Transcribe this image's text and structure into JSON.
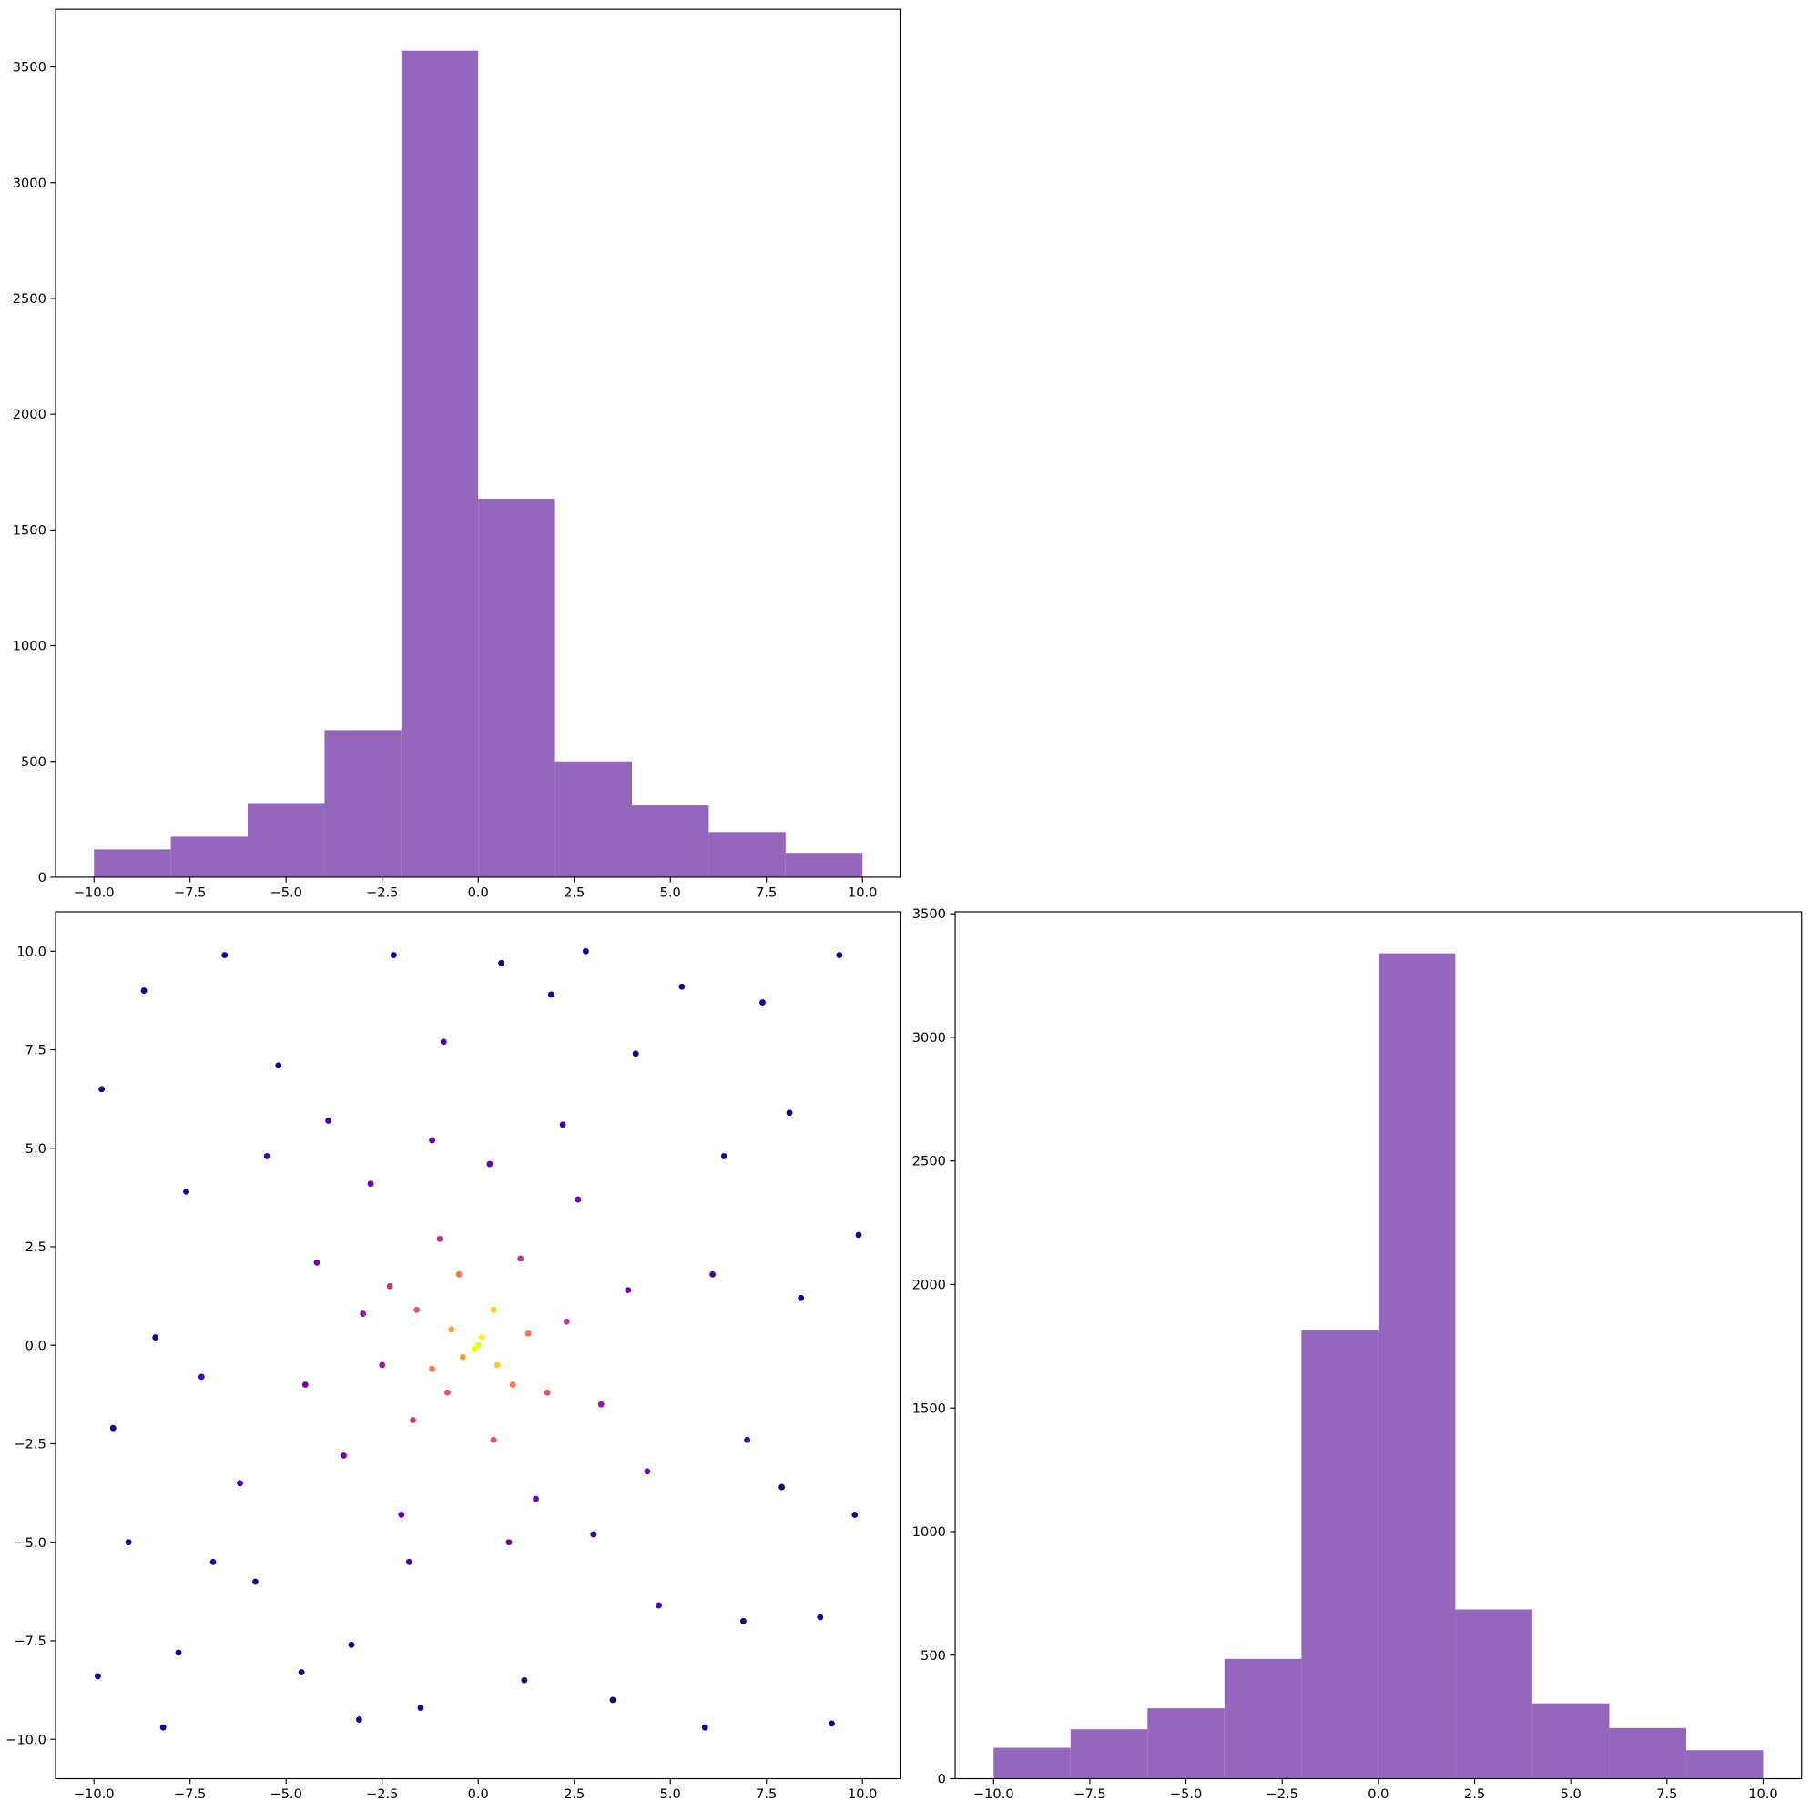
{
  "chart_data": [
    {
      "type": "histogram",
      "color": "#9467bd",
      "bins": [
        -10,
        -8,
        -6,
        -4,
        -2,
        0,
        2,
        4,
        6,
        8,
        10
      ],
      "values": [
        120,
        175,
        320,
        635,
        3570,
        1635,
        500,
        310,
        195,
        105
      ],
      "xlim": [
        -11,
        11
      ],
      "ylim": [
        0,
        3749
      ],
      "xticks": [
        {
          "value": -10,
          "label": "−10.0"
        },
        {
          "value": -7.5,
          "label": "−7.5"
        },
        {
          "value": -5,
          "label": "−5.0"
        },
        {
          "value": -2.5,
          "label": "−2.5"
        },
        {
          "value": 0,
          "label": "0.0"
        },
        {
          "value": 2.5,
          "label": "2.5"
        },
        {
          "value": 5,
          "label": "5.0"
        },
        {
          "value": 7.5,
          "label": "7.5"
        },
        {
          "value": 10,
          "label": "10.0"
        }
      ],
      "yticks": [
        0,
        500,
        1000,
        1500,
        2000,
        2500,
        3000,
        3500
      ]
    },
    {
      "type": "scatter",
      "colormap": "plasma",
      "x": [
        -9.8,
        -9.5,
        -8.7,
        -8.2,
        -7.6,
        -6.9,
        -6.6,
        -5.8,
        -5.2,
        -4.6,
        -3.9,
        -3.3,
        -2.2,
        -1.5,
        -0.9,
        0.6,
        1.2,
        1.9,
        2.8,
        3.5,
        4.1,
        4.7,
        5.3,
        5.9,
        6.4,
        6.9,
        7.4,
        7.9,
        8.4,
        8.9,
        9.4,
        9.8,
        9.9,
        -9.9,
        -9.1,
        -8.4,
        -7.2,
        -6.2,
        -5.5,
        8.1,
        9.2,
        -3.1,
        3.0,
        6.1,
        -7.8,
        7.0,
        -4.2,
        -3.5,
        -2.8,
        -2.0,
        -1.2,
        0.3,
        1.5,
        2.6,
        3.2,
        3.9,
        -4.5,
        4.4,
        2.2,
        -3.0,
        0.8,
        -1.8,
        -2.3,
        -1.7,
        -1.0,
        1.1,
        1.8,
        -2.5,
        0.4,
        2.3,
        -1.6,
        -1.2,
        -0.5,
        0.9,
        1.3,
        -0.8,
        -0.7,
        -0.4,
        0.4,
        0.5,
        0.0,
        0.1,
        -0.1
      ],
      "y": [
        6.5,
        -2.1,
        9.0,
        -9.7,
        3.9,
        -5.5,
        9.9,
        -6.0,
        7.1,
        -8.3,
        5.7,
        -7.6,
        9.9,
        -9.2,
        7.7,
        9.7,
        -8.5,
        8.9,
        10.0,
        -9.0,
        7.4,
        -6.6,
        9.1,
        -9.7,
        4.8,
        -7.0,
        8.7,
        -3.6,
        1.2,
        -6.9,
        9.9,
        -4.3,
        2.8,
        -8.4,
        -5.0,
        0.2,
        -0.8,
        -3.5,
        4.8,
        5.9,
        -9.6,
        -9.5,
        -4.8,
        1.8,
        -7.8,
        -2.4,
        2.1,
        -2.8,
        4.1,
        -4.3,
        5.2,
        4.6,
        -3.9,
        3.7,
        -1.5,
        1.4,
        -1.0,
        -3.2,
        5.6,
        0.8,
        -5.0,
        -5.5,
        1.5,
        -1.9,
        2.7,
        2.2,
        -1.2,
        -0.5,
        -2.4,
        0.6,
        0.9,
        -0.6,
        1.8,
        -1.0,
        0.3,
        -1.2,
        0.4,
        -0.3,
        0.9,
        -0.5,
        0.0,
        0.2,
        -0.1
      ],
      "c": [
        0.03,
        0.04,
        0.02,
        0.02,
        0.05,
        0.04,
        0.02,
        0.04,
        0.04,
        0.03,
        0.07,
        0.05,
        0.03,
        0.03,
        0.06,
        0.05,
        0.05,
        0.04,
        0.02,
        0.03,
        0.05,
        0.06,
        0.03,
        0.02,
        0.05,
        0.04,
        0.03,
        0.05,
        0.04,
        0.03,
        0.02,
        0.03,
        0.03,
        0.02,
        0.04,
        0.05,
        0.07,
        0.07,
        0.06,
        0.04,
        0.02,
        0.03,
        0.09,
        0.06,
        0.03,
        0.06,
        0.22,
        0.24,
        0.2,
        0.2,
        0.18,
        0.22,
        0.24,
        0.2,
        0.3,
        0.2,
        0.2,
        0.17,
        0.16,
        0.28,
        0.17,
        0.16,
        0.4,
        0.42,
        0.44,
        0.48,
        0.5,
        0.38,
        0.52,
        0.46,
        0.6,
        0.62,
        0.64,
        0.66,
        0.62,
        0.6,
        0.78,
        0.82,
        0.84,
        0.86,
        1.0,
        0.98,
        0.97
      ],
      "xlim": [
        -11,
        11
      ],
      "ylim": [
        -11,
        11
      ],
      "xticks": [
        {
          "value": -10,
          "label": "−10.0"
        },
        {
          "value": -7.5,
          "label": "−7.5"
        },
        {
          "value": -5,
          "label": "−5.0"
        },
        {
          "value": -2.5,
          "label": "−2.5"
        },
        {
          "value": 0,
          "label": "0.0"
        },
        {
          "value": 2.5,
          "label": "2.5"
        },
        {
          "value": 5,
          "label": "5.0"
        },
        {
          "value": 7.5,
          "label": "7.5"
        },
        {
          "value": 10,
          "label": "10.0"
        }
      ],
      "yticks": [
        {
          "value": -10,
          "label": "−10.0"
        },
        {
          "value": -7.5,
          "label": "−7.5"
        },
        {
          "value": -5,
          "label": "−5.0"
        },
        {
          "value": -2.5,
          "label": "−2.5"
        },
        {
          "value": 0,
          "label": "0.0"
        },
        {
          "value": 2.5,
          "label": "2.5"
        },
        {
          "value": 5,
          "label": "5.0"
        },
        {
          "value": 7.5,
          "label": "7.5"
        },
        {
          "value": 10,
          "label": "10.0"
        }
      ]
    },
    {
      "type": "histogram",
      "color": "#9467bd",
      "bins": [
        -10,
        -8,
        -6,
        -4,
        -2,
        0,
        2,
        4,
        6,
        8,
        10
      ],
      "values": [
        125,
        200,
        285,
        485,
        1815,
        3340,
        685,
        305,
        205,
        115
      ],
      "xlim": [
        -11,
        11
      ],
      "ylim": [
        0,
        3508
      ],
      "xticks": [
        {
          "value": -10,
          "label": "−10.0"
        },
        {
          "value": -7.5,
          "label": "−7.5"
        },
        {
          "value": -5,
          "label": "−5.0"
        },
        {
          "value": -2.5,
          "label": "−2.5"
        },
        {
          "value": 0,
          "label": "0.0"
        },
        {
          "value": 2.5,
          "label": "2.5"
        },
        {
          "value": 5,
          "label": "5.0"
        },
        {
          "value": 7.5,
          "label": "7.5"
        },
        {
          "value": 10,
          "label": "10.0"
        }
      ],
      "yticks": [
        0,
        500,
        1000,
        1500,
        2000,
        2500,
        3000,
        3500
      ]
    }
  ]
}
